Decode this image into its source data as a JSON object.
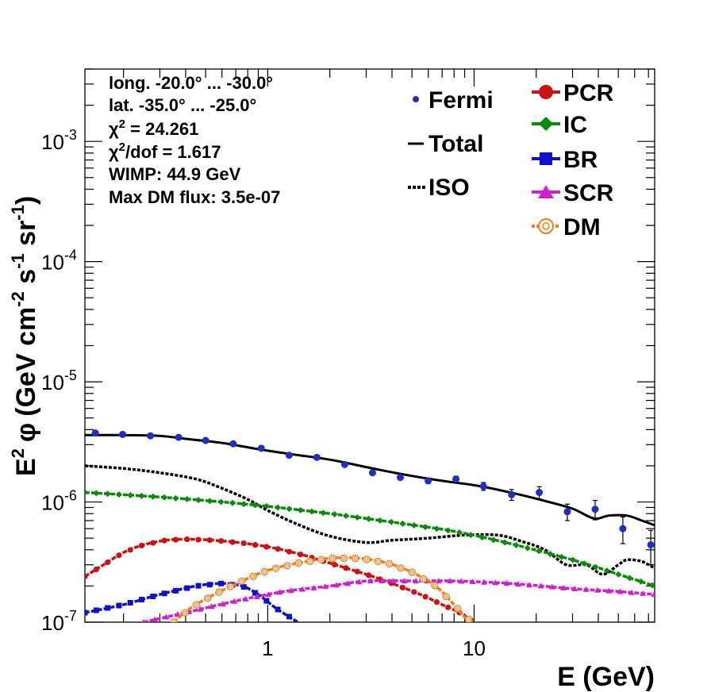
{
  "chart_data": {
    "type": "line",
    "xlabel": "E (GeV)",
    "ylabel": {
      "main": "E",
      "sup1": "2",
      "phi": "φ",
      "units": "(GeV cm",
      "sup2": "-2",
      "s": " s",
      "sup3": "-1",
      "sr": " sr",
      "sup4": "-1",
      "close": ")"
    },
    "x_scale": "log",
    "y_scale": "log",
    "xlim": [
      0.13,
      75
    ],
    "ylim": [
      1e-07,
      0.004
    ],
    "x_ticks": [
      {
        "value": 1,
        "label": "1"
      },
      {
        "value": 10,
        "label": "10"
      }
    ],
    "y_ticks": [
      {
        "value": 1e-07,
        "base": "10",
        "exp": "-7"
      },
      {
        "value": 1e-06,
        "base": "10",
        "exp": "-6"
      },
      {
        "value": 1e-05,
        "base": "10",
        "exp": "-5"
      },
      {
        "value": 0.0001,
        "base": "10",
        "exp": "-4"
      },
      {
        "value": 0.001,
        "base": "10",
        "exp": "-3"
      }
    ],
    "info": [
      {
        "text": "long. -20.0° ... -30.0°"
      },
      {
        "text": "lat. -35.0° ... -25.0°"
      },
      {
        "text": "χ",
        "sup": "2",
        "rest": " = 24.261"
      },
      {
        "text": "χ",
        "sup": "2",
        "rest": "/dof = 1.617"
      },
      {
        "text": "WIMP: 44.9 GeV"
      },
      {
        "text": "Max DM flux: 3.5e-07"
      }
    ],
    "legend": [
      {
        "label": "Fermi",
        "series": "Fermi"
      },
      {
        "label": "Total",
        "series": "Total"
      },
      {
        "label": "ISO",
        "series": "ISO"
      },
      {
        "label": "PCR",
        "series": "PCR"
      },
      {
        "label": "IC",
        "series": "IC"
      },
      {
        "label": "BR",
        "series": "BR"
      },
      {
        "label": "SCR",
        "series": "SCR"
      },
      {
        "label": "DM",
        "series": "DM"
      }
    ],
    "series": [
      {
        "name": "Fermi",
        "kind": "points",
        "color": "#1f2fc0",
        "points": [
          [
            0.146,
            3.75e-06,
            1.5e-07
          ],
          [
            0.198,
            3.65e-06,
            1.2e-07
          ],
          [
            0.27,
            3.55e-06,
            1.2e-07
          ],
          [
            0.37,
            3.45e-06,
            1.2e-07
          ],
          [
            0.5,
            3.25e-06,
            1e-07
          ],
          [
            0.68,
            3.05e-06,
            1e-07
          ],
          [
            0.93,
            2.8e-06,
            9e-08
          ],
          [
            1.27,
            2.45e-06,
            8e-08
          ],
          [
            1.73,
            2.35e-06,
            8e-08
          ],
          [
            2.36,
            2.05e-06,
            7e-08
          ],
          [
            3.22,
            1.75e-06,
            7e-08
          ],
          [
            4.39,
            1.6e-06,
            7e-08
          ],
          [
            5.99,
            1.5e-06,
            8e-08
          ],
          [
            8.17,
            1.55e-06,
            9e-08
          ],
          [
            11.1,
            1.35e-06,
            1e-07
          ],
          [
            15.2,
            1.15e-06,
            1.2e-07
          ],
          [
            20.7,
            1.2e-06,
            1.4e-07
          ],
          [
            28.3,
            8.3e-07,
            1.3e-07
          ],
          [
            38.6,
            8.7e-07,
            1.6e-07
          ],
          [
            52.6,
            6e-07,
            1.5e-07
          ],
          [
            71.8,
            4.4e-07,
            1.4e-07
          ]
        ]
      },
      {
        "name": "Total",
        "kind": "line",
        "color": "#000000",
        "points": [
          [
            0.13,
            3.6e-06
          ],
          [
            0.2,
            3.6e-06
          ],
          [
            0.3,
            3.55e-06
          ],
          [
            0.4,
            3.35e-06
          ],
          [
            0.6,
            3.1e-06
          ],
          [
            0.9,
            2.75e-06
          ],
          [
            1.3,
            2.5e-06
          ],
          [
            2,
            2.25e-06
          ],
          [
            3,
            1.95e-06
          ],
          [
            4.5,
            1.7e-06
          ],
          [
            7,
            1.5e-06
          ],
          [
            10,
            1.38e-06
          ],
          [
            15,
            1.2e-06
          ],
          [
            22,
            1.02e-06
          ],
          [
            30,
            8.8e-07
          ],
          [
            38,
            7.3e-07
          ],
          [
            45,
            7.7e-07
          ],
          [
            55,
            7.7e-07
          ],
          [
            65,
            7e-07
          ],
          [
            75,
            6.4e-07
          ]
        ]
      },
      {
        "name": "ISO",
        "kind": "line",
        "color": "#000000",
        "points": [
          [
            0.13,
            2e-06
          ],
          [
            0.2,
            1.9e-06
          ],
          [
            0.3,
            1.75e-06
          ],
          [
            0.45,
            1.55e-06
          ],
          [
            0.6,
            1.3e-06
          ],
          [
            0.8,
            1.05e-06
          ],
          [
            1,
            8.5e-07
          ],
          [
            1.4,
            6.5e-07
          ],
          [
            2,
            5.2e-07
          ],
          [
            3,
            4.6e-07
          ],
          [
            4,
            4.8e-07
          ],
          [
            6,
            5e-07
          ],
          [
            9,
            5.3e-07
          ],
          [
            13,
            5.3e-07
          ],
          [
            17,
            4.7e-07
          ],
          [
            22,
            4e-07
          ],
          [
            28,
            3e-07
          ],
          [
            35,
            3e-07
          ],
          [
            42,
            2.5e-07
          ],
          [
            50,
            3e-07
          ],
          [
            55,
            3.3e-07
          ],
          [
            65,
            3.2e-07
          ],
          [
            75,
            2.8e-07
          ]
        ]
      },
      {
        "name": "IC",
        "kind": "line",
        "color": "#0a8a0a",
        "points": [
          [
            0.13,
            1.2e-06
          ],
          [
            0.3,
            1.1e-06
          ],
          [
            0.6,
            1e-06
          ],
          [
            1,
            9.2e-07
          ],
          [
            2,
            8e-07
          ],
          [
            4,
            6.8e-07
          ],
          [
            8,
            5.7e-07
          ],
          [
            15,
            4.5e-07
          ],
          [
            30,
            3.3e-07
          ],
          [
            50,
            2.5e-07
          ],
          [
            75,
            2e-07
          ]
        ]
      },
      {
        "name": "PCR",
        "kind": "line",
        "color": "#cc1111",
        "points": [
          [
            0.13,
            2.4e-07
          ],
          [
            0.16,
            3e-07
          ],
          [
            0.2,
            3.8e-07
          ],
          [
            0.25,
            4.4e-07
          ],
          [
            0.32,
            4.8e-07
          ],
          [
            0.4,
            4.9e-07
          ],
          [
            0.55,
            4.8e-07
          ],
          [
            0.8,
            4.5e-07
          ],
          [
            1.1,
            4.1e-07
          ],
          [
            1.5,
            3.6e-07
          ],
          [
            2,
            3.1e-07
          ],
          [
            3,
            2.5e-07
          ],
          [
            4,
            2.1e-07
          ],
          [
            5.5,
            1.7e-07
          ],
          [
            7,
            1.4e-07
          ],
          [
            8.5,
            1.2e-07
          ],
          [
            10,
            1e-07
          ]
        ]
      },
      {
        "name": "BR",
        "kind": "line",
        "color": "#1111cc",
        "points": [
          [
            0.13,
            1.2e-07
          ],
          [
            0.2,
            1.4e-07
          ],
          [
            0.3,
            1.7e-07
          ],
          [
            0.45,
            2e-07
          ],
          [
            0.6,
            2.1e-07
          ],
          [
            0.75,
            2e-07
          ],
          [
            0.9,
            1.7e-07
          ],
          [
            1.1,
            1.3e-07
          ],
          [
            1.4,
            1e-07
          ]
        ]
      },
      {
        "name": "SCR",
        "kind": "line",
        "color": "#cc22cc",
        "points": [
          [
            0.25,
            1e-07
          ],
          [
            0.4,
            1.2e-07
          ],
          [
            0.7,
            1.5e-07
          ],
          [
            1.2,
            1.8e-07
          ],
          [
            2,
            2e-07
          ],
          [
            3,
            2.2e-07
          ],
          [
            5,
            2.2e-07
          ],
          [
            8,
            2.2e-07
          ],
          [
            15,
            2.1e-07
          ],
          [
            30,
            1.9e-07
          ],
          [
            50,
            1.8e-07
          ],
          [
            75,
            1.7e-07
          ]
        ]
      },
      {
        "name": "DM",
        "kind": "line",
        "color": "#f07f1e",
        "points": [
          [
            0.35,
            1e-07
          ],
          [
            0.42,
            1.3e-07
          ],
          [
            0.55,
            1.7e-07
          ],
          [
            0.75,
            2.2e-07
          ],
          [
            1,
            2.7e-07
          ],
          [
            1.4,
            3.1e-07
          ],
          [
            2,
            3.4e-07
          ],
          [
            2.8,
            3.4e-07
          ],
          [
            3.8,
            3.1e-07
          ],
          [
            5,
            2.6e-07
          ],
          [
            6.5,
            2e-07
          ],
          [
            8,
            1.4e-07
          ],
          [
            9,
            1.1e-07
          ],
          [
            10,
            1e-07
          ]
        ]
      }
    ]
  }
}
